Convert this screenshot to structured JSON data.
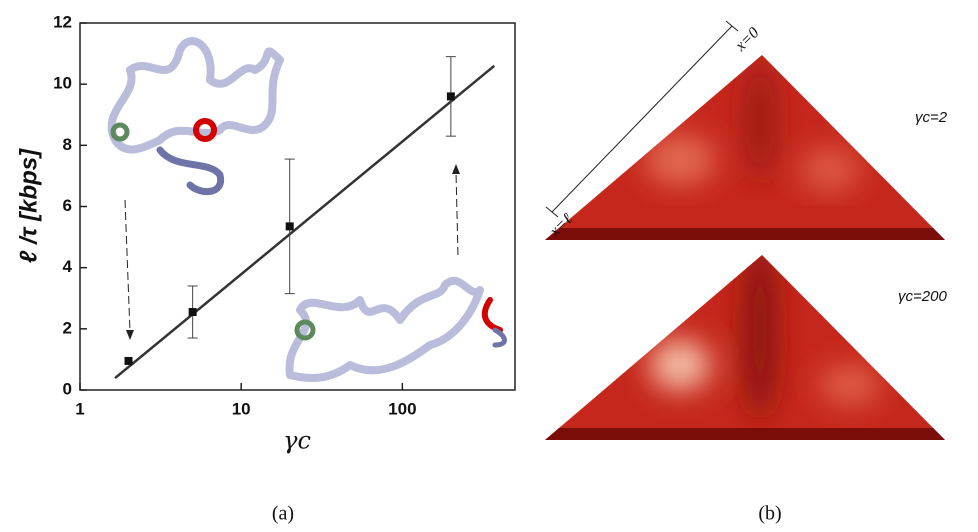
{
  "chart_data": {
    "type": "scatter",
    "y_label": "ℓ /τ [kbps]",
    "x_label": "γc",
    "x": [
      2,
      5,
      20,
      200
    ],
    "values": [
      0.95,
      2.55,
      5.35,
      9.6
    ],
    "errors": [
      null,
      0.85,
      2.2,
      1.3
    ],
    "color": "#111111",
    "xscale": "log",
    "xlim": [
      1,
      500
    ],
    "ylim": [
      0,
      12
    ],
    "xticks": [
      1,
      10,
      100
    ],
    "yticks": [
      0,
      2,
      4,
      6,
      8,
      10,
      12
    ],
    "fit_line": {
      "x": [
        1.65,
        372
      ],
      "values": [
        0.39,
        10.6
      ]
    }
  },
  "panel_b": {
    "axis_labels": [
      "x=0",
      "x=ℓ"
    ],
    "maps": [
      {
        "label": "γc=2"
      },
      {
        "label": "γc=200"
      }
    ]
  },
  "captions": [
    "(a)",
    "(b)"
  ]
}
